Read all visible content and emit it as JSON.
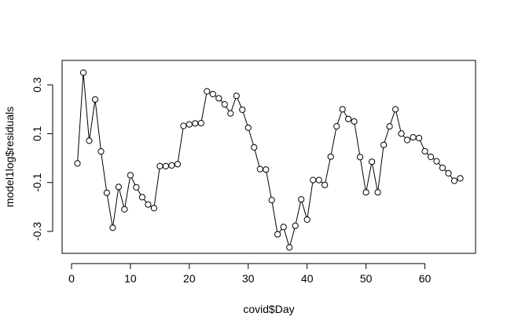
{
  "chart_data": {
    "type": "scatter",
    "title": "",
    "xlabel": "covid$Day",
    "ylabel": "model1log$residuals",
    "xlim": [
      -1.6,
      68.6
    ],
    "ylim": [
      -0.39,
      0.4
    ],
    "xticks": [
      0,
      10,
      20,
      30,
      40,
      50,
      60
    ],
    "xtick_labels": [
      "0",
      "10",
      "20",
      "30",
      "40",
      "50",
      "60"
    ],
    "yticks": [
      0.3,
      0.1,
      -0.1,
      -0.3
    ],
    "ytick_labels": [
      "0.3",
      "0.1",
      "-0.1",
      "-0.3"
    ],
    "grid": false,
    "legend": "none",
    "style": "points connected by lines (type='o')",
    "colors": {
      "line": "#000000",
      "point": "#000000",
      "background": "#ffffff"
    },
    "x": [
      1,
      2,
      3,
      4,
      5,
      6,
      7,
      8,
      9,
      10,
      11,
      12,
      13,
      14,
      15,
      16,
      17,
      18,
      19,
      20,
      21,
      22,
      23,
      24,
      25,
      26,
      27,
      28,
      29,
      30,
      31,
      32,
      33,
      34,
      35,
      36,
      37,
      38,
      39,
      40,
      41,
      42,
      43,
      44,
      45,
      46,
      47,
      48,
      49,
      50,
      51,
      52,
      53,
      54,
      55,
      56,
      57,
      58,
      59,
      60,
      61,
      62,
      63,
      64,
      65,
      66
    ],
    "y": [
      -0.022,
      0.35,
      0.071,
      0.24,
      0.027,
      -0.142,
      -0.285,
      -0.118,
      -0.21,
      -0.07,
      -0.12,
      -0.16,
      -0.19,
      -0.205,
      -0.033,
      -0.033,
      -0.03,
      -0.025,
      0.132,
      0.138,
      0.142,
      0.143,
      0.273,
      0.262,
      0.245,
      0.22,
      0.183,
      0.255,
      0.198,
      0.124,
      0.044,
      -0.045,
      -0.047,
      -0.172,
      -0.312,
      -0.282,
      -0.366,
      -0.277,
      -0.169,
      -0.252,
      -0.09,
      -0.09,
      -0.11,
      0.006,
      0.13,
      0.2,
      0.16,
      0.15,
      0.004,
      -0.14,
      -0.015,
      -0.14,
      0.054,
      0.13,
      0.2,
      0.1,
      0.074,
      0.085,
      0.082,
      0.028,
      0.005,
      -0.013,
      -0.04,
      -0.062,
      -0.093,
      -0.083
    ]
  }
}
